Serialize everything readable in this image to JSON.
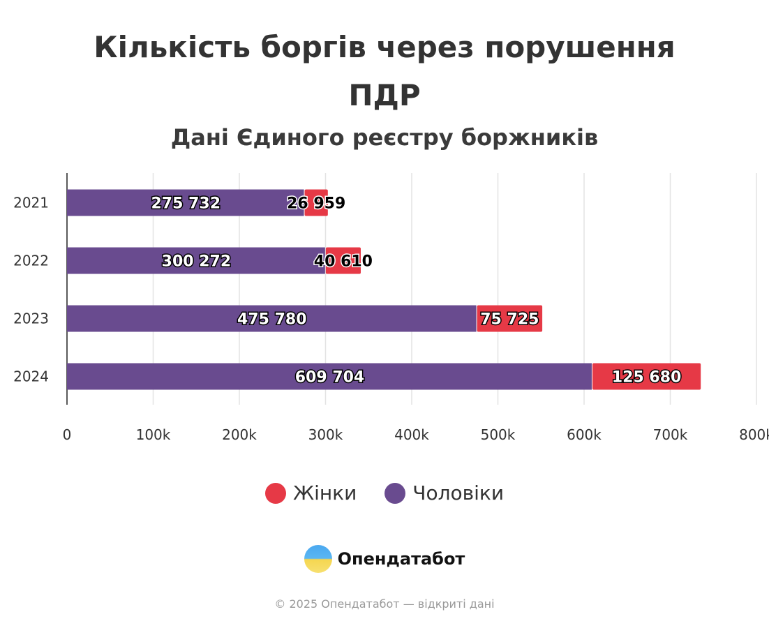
{
  "chart_data": {
    "type": "bar",
    "orientation": "horizontal",
    "stacked": true,
    "title": "Кількість боргів через порушення ПДР",
    "title_lines": [
      "Кількість боргів через порушення",
      "ПДР"
    ],
    "subtitle": "Дані Єдиного реєстру боржників",
    "categories": [
      "2021",
      "2022",
      "2023",
      "2024"
    ],
    "series": [
      {
        "name": "Чоловіки",
        "color": "#694b8f",
        "values": [
          275732,
          300272,
          475780,
          609704
        ],
        "labels": [
          "275 732",
          "300 272",
          "475 780",
          "609 704"
        ]
      },
      {
        "name": "Жінки",
        "color": "#e63946",
        "values": [
          26959,
          40610,
          75725,
          125680
        ],
        "labels": [
          "26 959",
          "40 610",
          "75 725",
          "125 680"
        ]
      }
    ],
    "xlim": [
      0,
      800000
    ],
    "x_ticks": [
      0,
      100000,
      200000,
      300000,
      400000,
      500000,
      600000,
      700000,
      800000
    ],
    "x_tick_labels": [
      "0",
      "100k",
      "200k",
      "300k",
      "400k",
      "500k",
      "600k",
      "700k",
      "800k"
    ],
    "grid": true,
    "legend": [
      {
        "name": "Жінки",
        "color": "#e63946"
      },
      {
        "name": "Чоловіки",
        "color": "#694b8f"
      }
    ],
    "legend_position": "bottom"
  },
  "branding": {
    "logo_text": "Опендатабот",
    "copyright": "© 2025 Опендатабот — відкриті дані"
  }
}
